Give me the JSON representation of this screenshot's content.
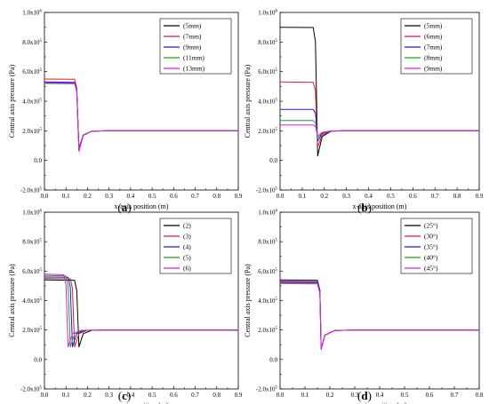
{
  "figure": {
    "panels": [
      {
        "label_prefix": "(",
        "label_letter": "a",
        "label_suffix": ")"
      },
      {
        "label_prefix": "(",
        "label_letter": "b",
        "label_suffix": ")"
      },
      {
        "label_prefix": "(",
        "label_letter": "c",
        "label_suffix": ")"
      },
      {
        "label_prefix": "(",
        "label_letter": "d",
        "label_suffix": ")"
      }
    ]
  },
  "chart_data": [
    {
      "type": "line",
      "xlabel": "x-axis position (m)",
      "ylabel": "Central axis pressure (Pa)",
      "xlim": [
        0.0,
        0.9
      ],
      "ylim": [
        -200000,
        1000000
      ],
      "xticks": [
        "0.0",
        "0.1",
        "0.2",
        "0.3",
        "0.4",
        "0.5",
        "0.6",
        "0.7",
        "0.8",
        "0.9"
      ],
      "yticks": [
        "-2.0x10^5",
        "0.0",
        "2.0x10^5",
        "4.0x10^5",
        "6.0x10^5",
        "8.0x10^5",
        "1.0x10^6"
      ],
      "legend_position": "top-right",
      "series": [
        {
          "name": "(5mm)",
          "color": "#000000",
          "x": [
            0.0,
            0.14,
            0.15,
            0.16,
            0.18,
            0.22,
            0.3,
            0.9
          ],
          "y": [
            525000,
            524000,
            480000,
            70000,
            170000,
            198000,
            200000,
            200000
          ]
        },
        {
          "name": "(7mm)",
          "color": "#e8191e",
          "x": [
            0.0,
            0.14,
            0.15,
            0.16,
            0.18,
            0.22,
            0.3,
            0.9
          ],
          "y": [
            550000,
            548000,
            490000,
            75000,
            170000,
            198000,
            200000,
            200000
          ]
        },
        {
          "name": "(9mm)",
          "color": "#1a1aee",
          "x": [
            0.0,
            0.14,
            0.15,
            0.16,
            0.18,
            0.22,
            0.3,
            0.9
          ],
          "y": [
            530000,
            528000,
            480000,
            85000,
            172000,
            198000,
            200000,
            200000
          ]
        },
        {
          "name": "(11mm)",
          "color": "#1ea01e",
          "x": [
            0.0,
            0.14,
            0.15,
            0.16,
            0.18,
            0.22,
            0.3,
            0.9
          ],
          "y": [
            520000,
            518000,
            470000,
            75000,
            170000,
            198000,
            200000,
            200000
          ]
        },
        {
          "name": "(13mm)",
          "color": "#e619e6",
          "x": [
            0.0,
            0.14,
            0.15,
            0.16,
            0.18,
            0.22,
            0.3,
            0.9
          ],
          "y": [
            525000,
            522000,
            470000,
            60000,
            168000,
            198000,
            200000,
            200000
          ]
        }
      ]
    },
    {
      "type": "line",
      "xlabel": "x-axis position (m)",
      "ylabel": "Central axis pressure (Pa)",
      "xlim": [
        0.0,
        0.9
      ],
      "ylim": [
        -200000,
        1000000
      ],
      "xticks": [
        "0.0",
        "0.1",
        "0.2",
        "0.3",
        "0.4",
        "0.5",
        "0.6",
        "0.7",
        "0.8",
        "0.9"
      ],
      "yticks": [
        "-2.0x10^5",
        "0.0",
        "2.0x10^5",
        "4.0x10^5",
        "6.0x10^5",
        "8.0x10^5",
        "1.0x10^6"
      ],
      "legend_position": "top-right",
      "series": [
        {
          "name": "(5mm)",
          "color": "#000000",
          "x": [
            0.0,
            0.15,
            0.16,
            0.17,
            0.19,
            0.23,
            0.3,
            0.9
          ],
          "y": [
            900000,
            898000,
            800000,
            30000,
            160000,
            197000,
            200000,
            200000
          ]
        },
        {
          "name": "(6mm)",
          "color": "#e8191e",
          "x": [
            0.0,
            0.15,
            0.16,
            0.17,
            0.19,
            0.23,
            0.3,
            0.9
          ],
          "y": [
            530000,
            528000,
            470000,
            90000,
            170000,
            198000,
            200000,
            200000
          ]
        },
        {
          "name": "(7mm)",
          "color": "#1a1aee",
          "x": [
            0.0,
            0.15,
            0.16,
            0.17,
            0.19,
            0.23,
            0.3,
            0.9
          ],
          "y": [
            345000,
            344000,
            320000,
            130000,
            180000,
            199000,
            200000,
            200000
          ]
        },
        {
          "name": "(8mm)",
          "color": "#1ea01e",
          "x": [
            0.0,
            0.15,
            0.16,
            0.17,
            0.19,
            0.23,
            0.3,
            0.9
          ],
          "y": [
            270000,
            269000,
            255000,
            150000,
            185000,
            199000,
            200000,
            200000
          ]
        },
        {
          "name": "(9mm)",
          "color": "#e619e6",
          "x": [
            0.0,
            0.15,
            0.16,
            0.17,
            0.19,
            0.23,
            0.3,
            0.9
          ],
          "y": [
            240000,
            239000,
            230000,
            165000,
            190000,
            199000,
            200000,
            200000
          ]
        }
      ]
    },
    {
      "type": "line",
      "xlabel": "x-axis position (m)",
      "ylabel": "Central axis pressure (Pa)",
      "xlim": [
        0.0,
        0.9
      ],
      "ylim": [
        -200000,
        1000000
      ],
      "xticks": [
        "0.0",
        "0.1",
        "0.2",
        "0.3",
        "0.4",
        "0.5",
        "0.6",
        "0.7",
        "0.8",
        "0.9"
      ],
      "yticks": [
        "-2.0x10^5",
        "0.0",
        "2.0x10^5",
        "4.0x10^5",
        "6.0x10^5",
        "8.0x10^5",
        "1.0x10^6"
      ],
      "legend_position": "top-right",
      "series": [
        {
          "name": "(2)",
          "color": "#000000",
          "x": [
            0.0,
            0.14,
            0.15,
            0.16,
            0.18,
            0.22,
            0.3,
            0.9
          ],
          "y": [
            540000,
            538000,
            470000,
            85000,
            175000,
            198000,
            200000,
            200000
          ]
        },
        {
          "name": "(3)",
          "color": "#e8191e",
          "x": [
            0.0,
            0.12,
            0.13,
            0.14,
            0.16,
            0.2,
            0.3,
            0.9
          ],
          "y": [
            550000,
            548000,
            480000,
            85000,
            175000,
            198000,
            200000,
            200000
          ]
        },
        {
          "name": "(4)",
          "color": "#1a1aee",
          "x": [
            0.0,
            0.11,
            0.12,
            0.13,
            0.15,
            0.19,
            0.3,
            0.9
          ],
          "y": [
            560000,
            558000,
            490000,
            85000,
            175000,
            198000,
            200000,
            200000
          ]
        },
        {
          "name": "(5)",
          "color": "#1ea01e",
          "x": [
            0.0,
            0.1,
            0.11,
            0.12,
            0.14,
            0.18,
            0.3,
            0.9
          ],
          "y": [
            570000,
            567000,
            500000,
            85000,
            175000,
            198000,
            200000,
            200000
          ]
        },
        {
          "name": "(6)",
          "color": "#e619e6",
          "x": [
            0.0,
            0.09,
            0.1,
            0.11,
            0.13,
            0.17,
            0.3,
            0.9
          ],
          "y": [
            580000,
            575000,
            510000,
            85000,
            175000,
            198000,
            200000,
            200000
          ]
        }
      ]
    },
    {
      "type": "line",
      "xlabel": "x-axis position (m)",
      "ylabel": "Central axis pressure (Pa)",
      "xlim": [
        0.0,
        0.8
      ],
      "ylim": [
        -200000,
        1000000
      ],
      "xticks": [
        "0.0",
        "0.1",
        "0.2",
        "0.3",
        "0.4",
        "0.5",
        "0.6",
        "0.7",
        "0.8"
      ],
      "yticks": [
        "-2.0x10^5",
        "0.0",
        "2.0x10^5",
        "4.0x10^5",
        "6.0x10^5",
        "8.0x10^5",
        "1.0x10^6"
      ],
      "legend_position": "top-right",
      "series": [
        {
          "name": "(25°)",
          "color": "#000000",
          "x": [
            0.0,
            0.15,
            0.16,
            0.165,
            0.18,
            0.22,
            0.3,
            0.8
          ],
          "y": [
            540000,
            538000,
            470000,
            70000,
            165000,
            197000,
            200000,
            200000
          ]
        },
        {
          "name": "(30°)",
          "color": "#e8191e",
          "x": [
            0.0,
            0.15,
            0.16,
            0.165,
            0.18,
            0.22,
            0.3,
            0.8
          ],
          "y": [
            525000,
            523000,
            460000,
            75000,
            166000,
            197000,
            200000,
            200000
          ]
        },
        {
          "name": "(35°)",
          "color": "#1a1aee",
          "x": [
            0.0,
            0.15,
            0.16,
            0.165,
            0.18,
            0.22,
            0.3,
            0.8
          ],
          "y": [
            530000,
            528000,
            465000,
            70000,
            165000,
            197000,
            200000,
            200000
          ]
        },
        {
          "name": "(40°)",
          "color": "#1ea01e",
          "x": [
            0.0,
            0.15,
            0.16,
            0.165,
            0.18,
            0.22,
            0.3,
            0.8
          ],
          "y": [
            520000,
            518000,
            455000,
            72000,
            165000,
            197000,
            200000,
            200000
          ]
        },
        {
          "name": "(45°)",
          "color": "#e619e6",
          "x": [
            0.0,
            0.15,
            0.16,
            0.165,
            0.18,
            0.22,
            0.3,
            0.8
          ],
          "y": [
            515000,
            513000,
            450000,
            72000,
            165000,
            197000,
            200000,
            200000
          ]
        }
      ]
    }
  ]
}
